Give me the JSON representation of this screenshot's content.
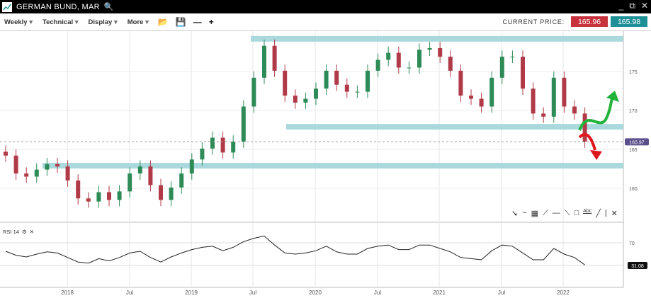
{
  "window": {
    "title": "GERMAN BUND, MAR",
    "search_icon": "search-icon",
    "controls": [
      "minimize-icon",
      "popout-icon",
      "close-icon"
    ]
  },
  "toolbar": {
    "menus": [
      "Weekly",
      "Technical",
      "Display",
      "More"
    ],
    "icons": [
      "folder-open-icon",
      "save-icon",
      "zoom-out-icon",
      "zoom-in-icon"
    ],
    "current_price_label": "CURRENT PRICE:",
    "sell_price": "165.96",
    "buy_price": "165.98",
    "sell_color": "#c8323c",
    "buy_color": "#1f8f98"
  },
  "drawing_tools": [
    "pointer-icon",
    "curve-icon",
    "grid-icon",
    "fan-icon",
    "horizontal-line-icon",
    "trend-line-icon",
    "rectangle-icon",
    "text-icon",
    "line-icon",
    "vertical-line-icon",
    "close-icon"
  ],
  "drawing_tool_text_label": "Abc",
  "rsi": {
    "label": "RSI 14",
    "level_label": "70",
    "value": "31.08"
  },
  "chart_data": {
    "type": "candlestick",
    "interval": "Weekly",
    "y_ticks": [
      "175",
      "170",
      "165",
      "160"
    ],
    "x_ticks": [
      "2018",
      "Jul",
      "2019",
      "Jul",
      "2020",
      "Jul",
      "2021",
      "Jul",
      "2022"
    ],
    "current_price_tag": "165.97",
    "ylim": [
      157,
      180
    ],
    "zones": [
      179.2,
      167.9,
      162.9
    ],
    "up_color": "#2e8b57",
    "down_color": "#b03a48",
    "zone_color": "#a9d9dd",
    "arrows": [
      {
        "direction": "up",
        "color": "#22b33a"
      },
      {
        "direction": "down",
        "color": "#e0161e"
      }
    ],
    "months": [
      "2017-07",
      "2017-08",
      "2017-09",
      "2017-10",
      "2017-11",
      "2017-12",
      "2018-01",
      "2018-02",
      "2018-03",
      "2018-04",
      "2018-05",
      "2018-06",
      "2018-07",
      "2018-08",
      "2018-09",
      "2018-10",
      "2018-11",
      "2018-12",
      "2019-01",
      "2019-02",
      "2019-03",
      "2019-04",
      "2019-05",
      "2019-06",
      "2019-07",
      "2019-08",
      "2019-09",
      "2019-10",
      "2019-11",
      "2019-12",
      "2020-01",
      "2020-02",
      "2020-03",
      "2020-04",
      "2020-05",
      "2020-06",
      "2020-07",
      "2020-08",
      "2020-09",
      "2020-10",
      "2020-11",
      "2020-12",
      "2021-01",
      "2021-02",
      "2021-03",
      "2021-04",
      "2021-05",
      "2021-06",
      "2021-07",
      "2021-08",
      "2021-09",
      "2021-10",
      "2021-11",
      "2021-12",
      "2022-01",
      "2022-02",
      "2022-03"
    ],
    "close": [
      164.2,
      161.9,
      161.5,
      162.4,
      163.1,
      162.8,
      161,
      158.7,
      158.3,
      159.5,
      158.5,
      159.6,
      161.9,
      162.8,
      160.4,
      158.5,
      160.1,
      161.9,
      163.7,
      165.1,
      166.5,
      164.6,
      166,
      170.5,
      174.2,
      178.3,
      175.1,
      171.9,
      171,
      171.5,
      172.8,
      175.1,
      173.3,
      172.4,
      172.4,
      175.1,
      176.5,
      177.4,
      175.5,
      175.5,
      177.8,
      178,
      176.9,
      175.1,
      171.9,
      171.5,
      170.5,
      174.2,
      176.9,
      176.9,
      172.8,
      169.6,
      169.2,
      174.2,
      170.5,
      169.6,
      166
    ],
    "rsi": [
      55,
      48,
      45,
      50,
      54,
      52,
      44,
      36,
      34,
      42,
      38,
      44,
      52,
      55,
      44,
      36,
      45,
      52,
      58,
      62,
      64,
      56,
      62,
      72,
      78,
      82,
      66,
      52,
      50,
      52,
      56,
      64,
      54,
      50,
      50,
      60,
      64,
      66,
      58,
      58,
      66,
      66,
      60,
      54,
      44,
      42,
      40,
      56,
      66,
      64,
      52,
      40,
      40,
      60,
      50,
      44,
      31
    ]
  }
}
